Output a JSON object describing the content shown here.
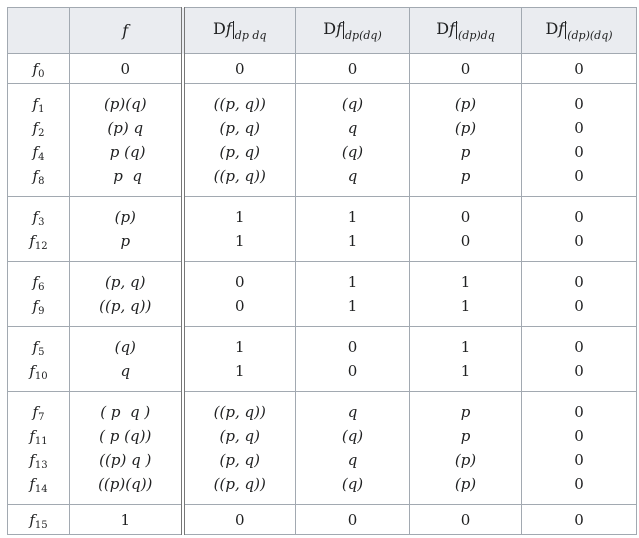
{
  "header": {
    "corner": "",
    "f": "f",
    "derivs": [
      {
        "main": "D",
        "var": "f",
        "sub": "dp dq"
      },
      {
        "main": "D",
        "var": "f",
        "sub": "dp(dq)"
      },
      {
        "main": "D",
        "var": "f",
        "sub": "(dp)dq"
      },
      {
        "main": "D",
        "var": "f",
        "sub": "(dp)(dq)"
      }
    ]
  },
  "groups": [
    {
      "rows": [
        {
          "name": "f",
          "sub": "0",
          "f": "0",
          "d": [
            "0",
            "0",
            "0",
            "0"
          ]
        }
      ]
    },
    {
      "rows": [
        {
          "name": "f",
          "sub": "1",
          "f": "(p)(q)",
          "d": [
            "((p, q))",
            "(q)",
            "(p)",
            "0"
          ]
        },
        {
          "name": "f",
          "sub": "2",
          "f": "(p) q",
          "d": [
            "(p, q)",
            "q",
            "(p)",
            "0"
          ]
        },
        {
          "name": "f",
          "sub": "4",
          "f": " p (q)",
          "d": [
            "(p, q)",
            "(q)",
            "p",
            "0"
          ]
        },
        {
          "name": "f",
          "sub": "8",
          "f": " p  q",
          "d": [
            "((p, q))",
            "q",
            "p",
            "0"
          ]
        }
      ]
    },
    {
      "rows": [
        {
          "name": "f",
          "sub": "3",
          "f": "(p)",
          "d": [
            "1",
            "1",
            "0",
            "0"
          ]
        },
        {
          "name": "f",
          "sub": "12",
          "f": "p",
          "d": [
            "1",
            "1",
            "0",
            "0"
          ]
        }
      ]
    },
    {
      "rows": [
        {
          "name": "f",
          "sub": "6",
          "f": "(p, q)",
          "d": [
            "0",
            "1",
            "1",
            "0"
          ]
        },
        {
          "name": "f",
          "sub": "9",
          "f": "((p, q))",
          "d": [
            "0",
            "1",
            "1",
            "0"
          ]
        }
      ]
    },
    {
      "rows": [
        {
          "name": "f",
          "sub": "5",
          "f": "(q)",
          "d": [
            "1",
            "0",
            "1",
            "0"
          ]
        },
        {
          "name": "f",
          "sub": "10",
          "f": "q",
          "d": [
            "1",
            "0",
            "1",
            "0"
          ]
        }
      ]
    },
    {
      "rows": [
        {
          "name": "f",
          "sub": "7",
          "f": "( p  q )",
          "d": [
            "((p, q))",
            "q",
            "p",
            "0"
          ]
        },
        {
          "name": "f",
          "sub": "11",
          "f": "( p (q))",
          "d": [
            "(p, q)",
            "(q)",
            "p",
            "0"
          ]
        },
        {
          "name": "f",
          "sub": "13",
          "f": "((p) q )",
          "d": [
            "(p, q)",
            "q",
            "(p)",
            "0"
          ]
        },
        {
          "name": "f",
          "sub": "14",
          "f": "((p)(q))",
          "d": [
            "((p, q))",
            "(q)",
            "(p)",
            "0"
          ]
        }
      ]
    },
    {
      "rows": [
        {
          "name": "f",
          "sub": "15",
          "f": "1",
          "d": [
            "0",
            "0",
            "0",
            "0"
          ]
        }
      ]
    }
  ]
}
